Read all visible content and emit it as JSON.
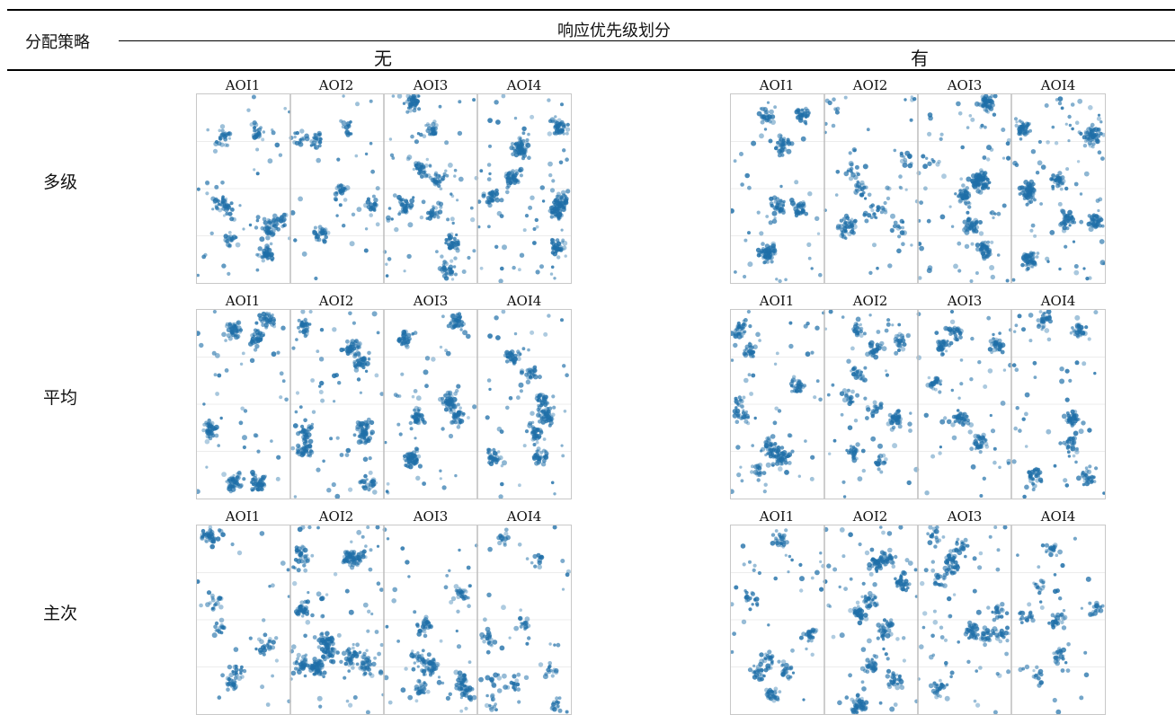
{
  "header": {
    "strategy_label": "分配策略",
    "priority_label": "响应优先级划分",
    "no_label": "无",
    "yes_label": "有"
  },
  "rows": [
    {
      "label": "多级"
    },
    {
      "label": "平均"
    },
    {
      "label": "主次"
    }
  ],
  "aoi_labels": [
    "AOI1",
    "AOI2",
    "AOI3",
    "AOI4"
  ],
  "colors": {
    "point": "#1f6fa8",
    "divider": "#bdbdbd",
    "grid": "#ececec"
  },
  "chart_data": {
    "type": "scatter",
    "description_free": true,
    "panels": [
      {
        "row": "多级",
        "priority": "无",
        "density": [
          0.55,
          0.35,
          0.7,
          0.85
        ]
      },
      {
        "row": "多级",
        "priority": "有",
        "density": [
          0.6,
          0.4,
          0.75,
          0.9
        ]
      },
      {
        "row": "平均",
        "priority": "无",
        "density": [
          0.65,
          0.7,
          0.7,
          0.6
        ]
      },
      {
        "row": "平均",
        "priority": "有",
        "density": [
          0.6,
          0.55,
          0.55,
          0.55
        ]
      },
      {
        "row": "主次",
        "priority": "无",
        "density": [
          0.35,
          0.95,
          0.55,
          0.35
        ]
      },
      {
        "row": "主次",
        "priority": "有",
        "density": [
          0.45,
          0.8,
          0.6,
          0.35
        ]
      }
    ]
  }
}
